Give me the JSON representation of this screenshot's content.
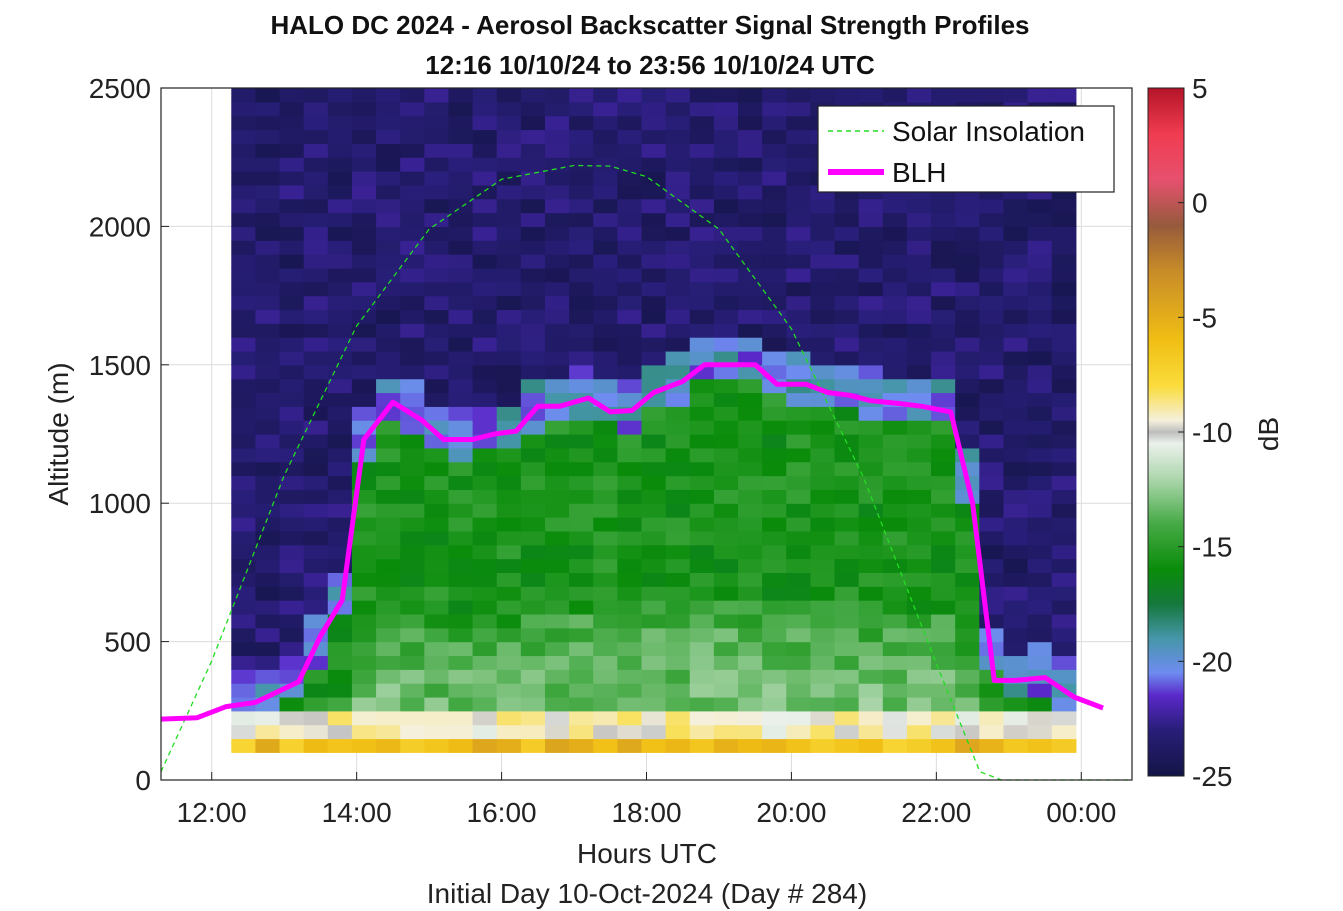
{
  "chart_data": {
    "type": "heatmap",
    "title": "HALO DC 2024 - Aerosol Backscatter Signal Strength Profiles",
    "subtitle": "12:16 10/10/24 to 23:56 10/10/24  UTC",
    "xlabel": "Hours UTC",
    "xlabel2": "Initial Day 10-Oct-2024 (Day # 284)",
    "ylabel": "Altitude (m)",
    "xlim": [
      11.3,
      24.7
    ],
    "ylim": [
      0,
      2500
    ],
    "x_ticks": [
      12,
      14,
      16,
      18,
      20,
      22,
      24
    ],
    "x_tick_labels": [
      "12:00",
      "14:00",
      "16:00",
      "18:00",
      "20:00",
      "22:00",
      "00:00"
    ],
    "y_ticks": [
      0,
      500,
      1000,
      1500,
      2000,
      2500
    ],
    "y_tick_labels": [
      "0",
      "500",
      "1000",
      "1500",
      "2000",
      "2500"
    ],
    "grid": true,
    "colorbar": {
      "label": "dB",
      "range": [
        -25,
        5
      ],
      "ticks": [
        5,
        0,
        -5,
        -10,
        -15,
        -20,
        -25
      ],
      "tick_labels": [
        "5",
        "0",
        "-5",
        "-10",
        "-15",
        "-20",
        "-25"
      ]
    },
    "legend": {
      "placement": "top-right",
      "entries": [
        {
          "label": "Solar Insolation",
          "color": "#22dd22",
          "style": "dashed"
        },
        {
          "label": "BLH",
          "color": "#ff00ff",
          "style": "solid"
        }
      ]
    },
    "heatmap": {
      "x_start": 12.27,
      "x_step": 0.333,
      "columns": 35,
      "y_start": 100,
      "y_step": 50,
      "layers": {
        "surface_dB": -6,
        "low_dB": -12,
        "mixed_dB": -15.5,
        "top_dB": -20,
        "free_troposphere_dB": -23.5
      }
    },
    "series": [
      {
        "name": "BLH",
        "x": [
          11.3,
          11.8,
          12.2,
          12.6,
          13.2,
          13.5,
          13.8,
          14.1,
          14.5,
          14.9,
          15.2,
          15.6,
          15.9,
          16.2,
          16.5,
          16.8,
          17.2,
          17.5,
          17.8,
          18.1,
          18.5,
          18.8,
          19.1,
          19.5,
          19.8,
          20.2,
          20.5,
          20.8,
          21.1,
          21.5,
          21.8,
          22.2,
          22.5,
          22.8,
          23.1,
          23.5,
          23.9,
          24.3
        ],
        "y": [
          220,
          225,
          265,
          280,
          355,
          520,
          650,
          1230,
          1365,
          1300,
          1230,
          1230,
          1250,
          1260,
          1350,
          1350,
          1380,
          1330,
          1335,
          1400,
          1440,
          1500,
          1500,
          1500,
          1430,
          1430,
          1400,
          1390,
          1370,
          1360,
          1350,
          1330,
          1000,
          360,
          360,
          370,
          300,
          260
        ]
      },
      {
        "name": "Solar Insolation",
        "x": [
          11.3,
          12.0,
          13.0,
          14.0,
          15.0,
          16.0,
          17.0,
          17.5,
          18.0,
          19.0,
          20.0,
          21.0,
          22.0,
          22.6,
          22.9,
          24.0,
          24.7
        ],
        "y": [
          30,
          430,
          1100,
          1640,
          1990,
          2170,
          2220,
          2218,
          2180,
          1990,
          1630,
          1090,
          420,
          30,
          0,
          0,
          0
        ]
      }
    ]
  },
  "colors": {
    "blh": "#ff00ff",
    "solar": "#22dd22",
    "grid": "#dcdcdc",
    "axis": "#222222"
  }
}
